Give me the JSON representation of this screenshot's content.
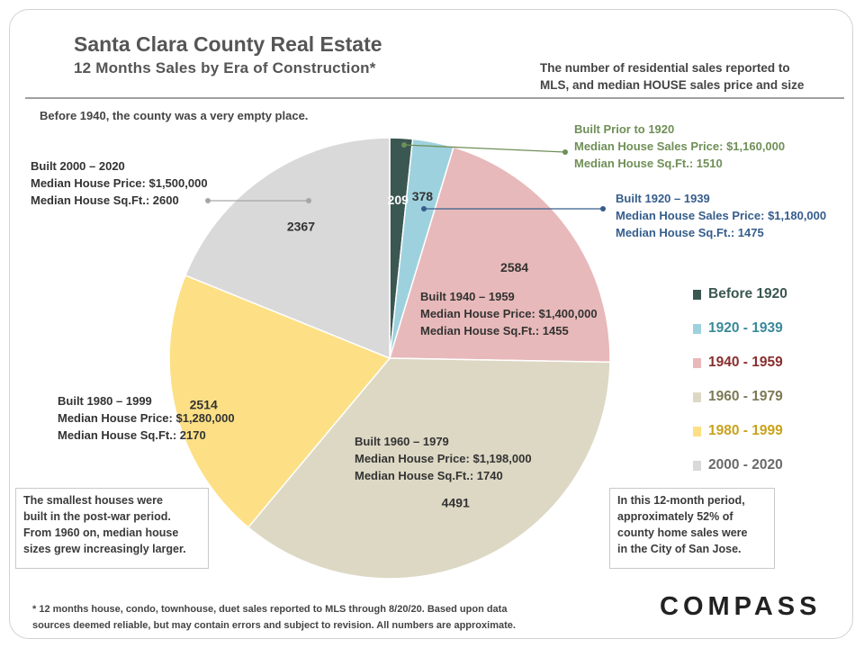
{
  "header": {
    "title": "Santa Clara County Real Estate",
    "subtitle": "12 Months Sales by Era of Construction*",
    "note": [
      "The number of residential sales reported to",
      "MLS, and median HOUSE sales price and size"
    ]
  },
  "note_1940": "Before 1940, the county was a very empty place.",
  "annotations": {
    "pre1920": [
      "Built Prior to 1920",
      "Median House Sales Price: $1,160,000",
      "Median House Sq.Ft.: 1510"
    ],
    "y1920": [
      "Built 1920 – 1939",
      "Median House Sales Price: $1,180,000",
      "Median House Sq.Ft.: 1475"
    ],
    "y1940": [
      "Built 1940 – 1959",
      "Median House Price: $1,400,000",
      "Median House Sq.Ft.: 1455"
    ],
    "y1960": [
      "Built 1960 – 1979",
      "Median House Price: $1,198,000",
      "Median House Sq.Ft.: 1740"
    ],
    "y1980": [
      "Built 1980 – 1999",
      "Median House Price: $1,280,000",
      "Median House Sq.Ft.: 2170"
    ],
    "y2000": [
      "Built 2000 – 2020",
      "Median House Price:  $1,500,000",
      "Median House Sq.Ft.: 2600"
    ]
  },
  "box_left": [
    "The smallest houses were",
    "built in the post-war period.",
    "From 1960 on, median house",
    "sizes grew increasingly larger."
  ],
  "box_right": [
    "In this 12-month period,",
    "approximately 52% of",
    "county home sales were",
    "in the City of San Jose."
  ],
  "footnote": [
    "* 12 months house, condo, townhouse, duet sales reported to MLS through 8/20/20. Based upon data",
    "sources deemed reliable, but may contain errors and subject to revision. All numbers are approximate."
  ],
  "logo": "COMPASS",
  "chart_data": {
    "type": "pie",
    "start_angle": "12 o'clock",
    "direction": "clockwise",
    "slices": [
      {
        "label": "Before 1920",
        "value": 209,
        "color": "#3b5752",
        "legend_text_color": "#3b5752"
      },
      {
        "label": "1920 - 1939",
        "value": 378,
        "color": "#9ed1de",
        "legend_text_color": "#3a8a99"
      },
      {
        "label": "1940 - 1959",
        "value": 2584,
        "color": "#e8b9ba",
        "legend_text_color": "#8a2e2e"
      },
      {
        "label": "1960 - 1979",
        "value": 4491,
        "color": "#ddd8c4",
        "legend_text_color": "#7c7a55"
      },
      {
        "label": "1980 - 1999",
        "value": 2514,
        "color": "#fde085",
        "legend_text_color": "#c9a21a"
      },
      {
        "label": "2000 - 2020",
        "value": 2367,
        "color": "#d9d9d9",
        "legend_text_color": "#6a6a6a"
      }
    ],
    "legend": "right"
  }
}
